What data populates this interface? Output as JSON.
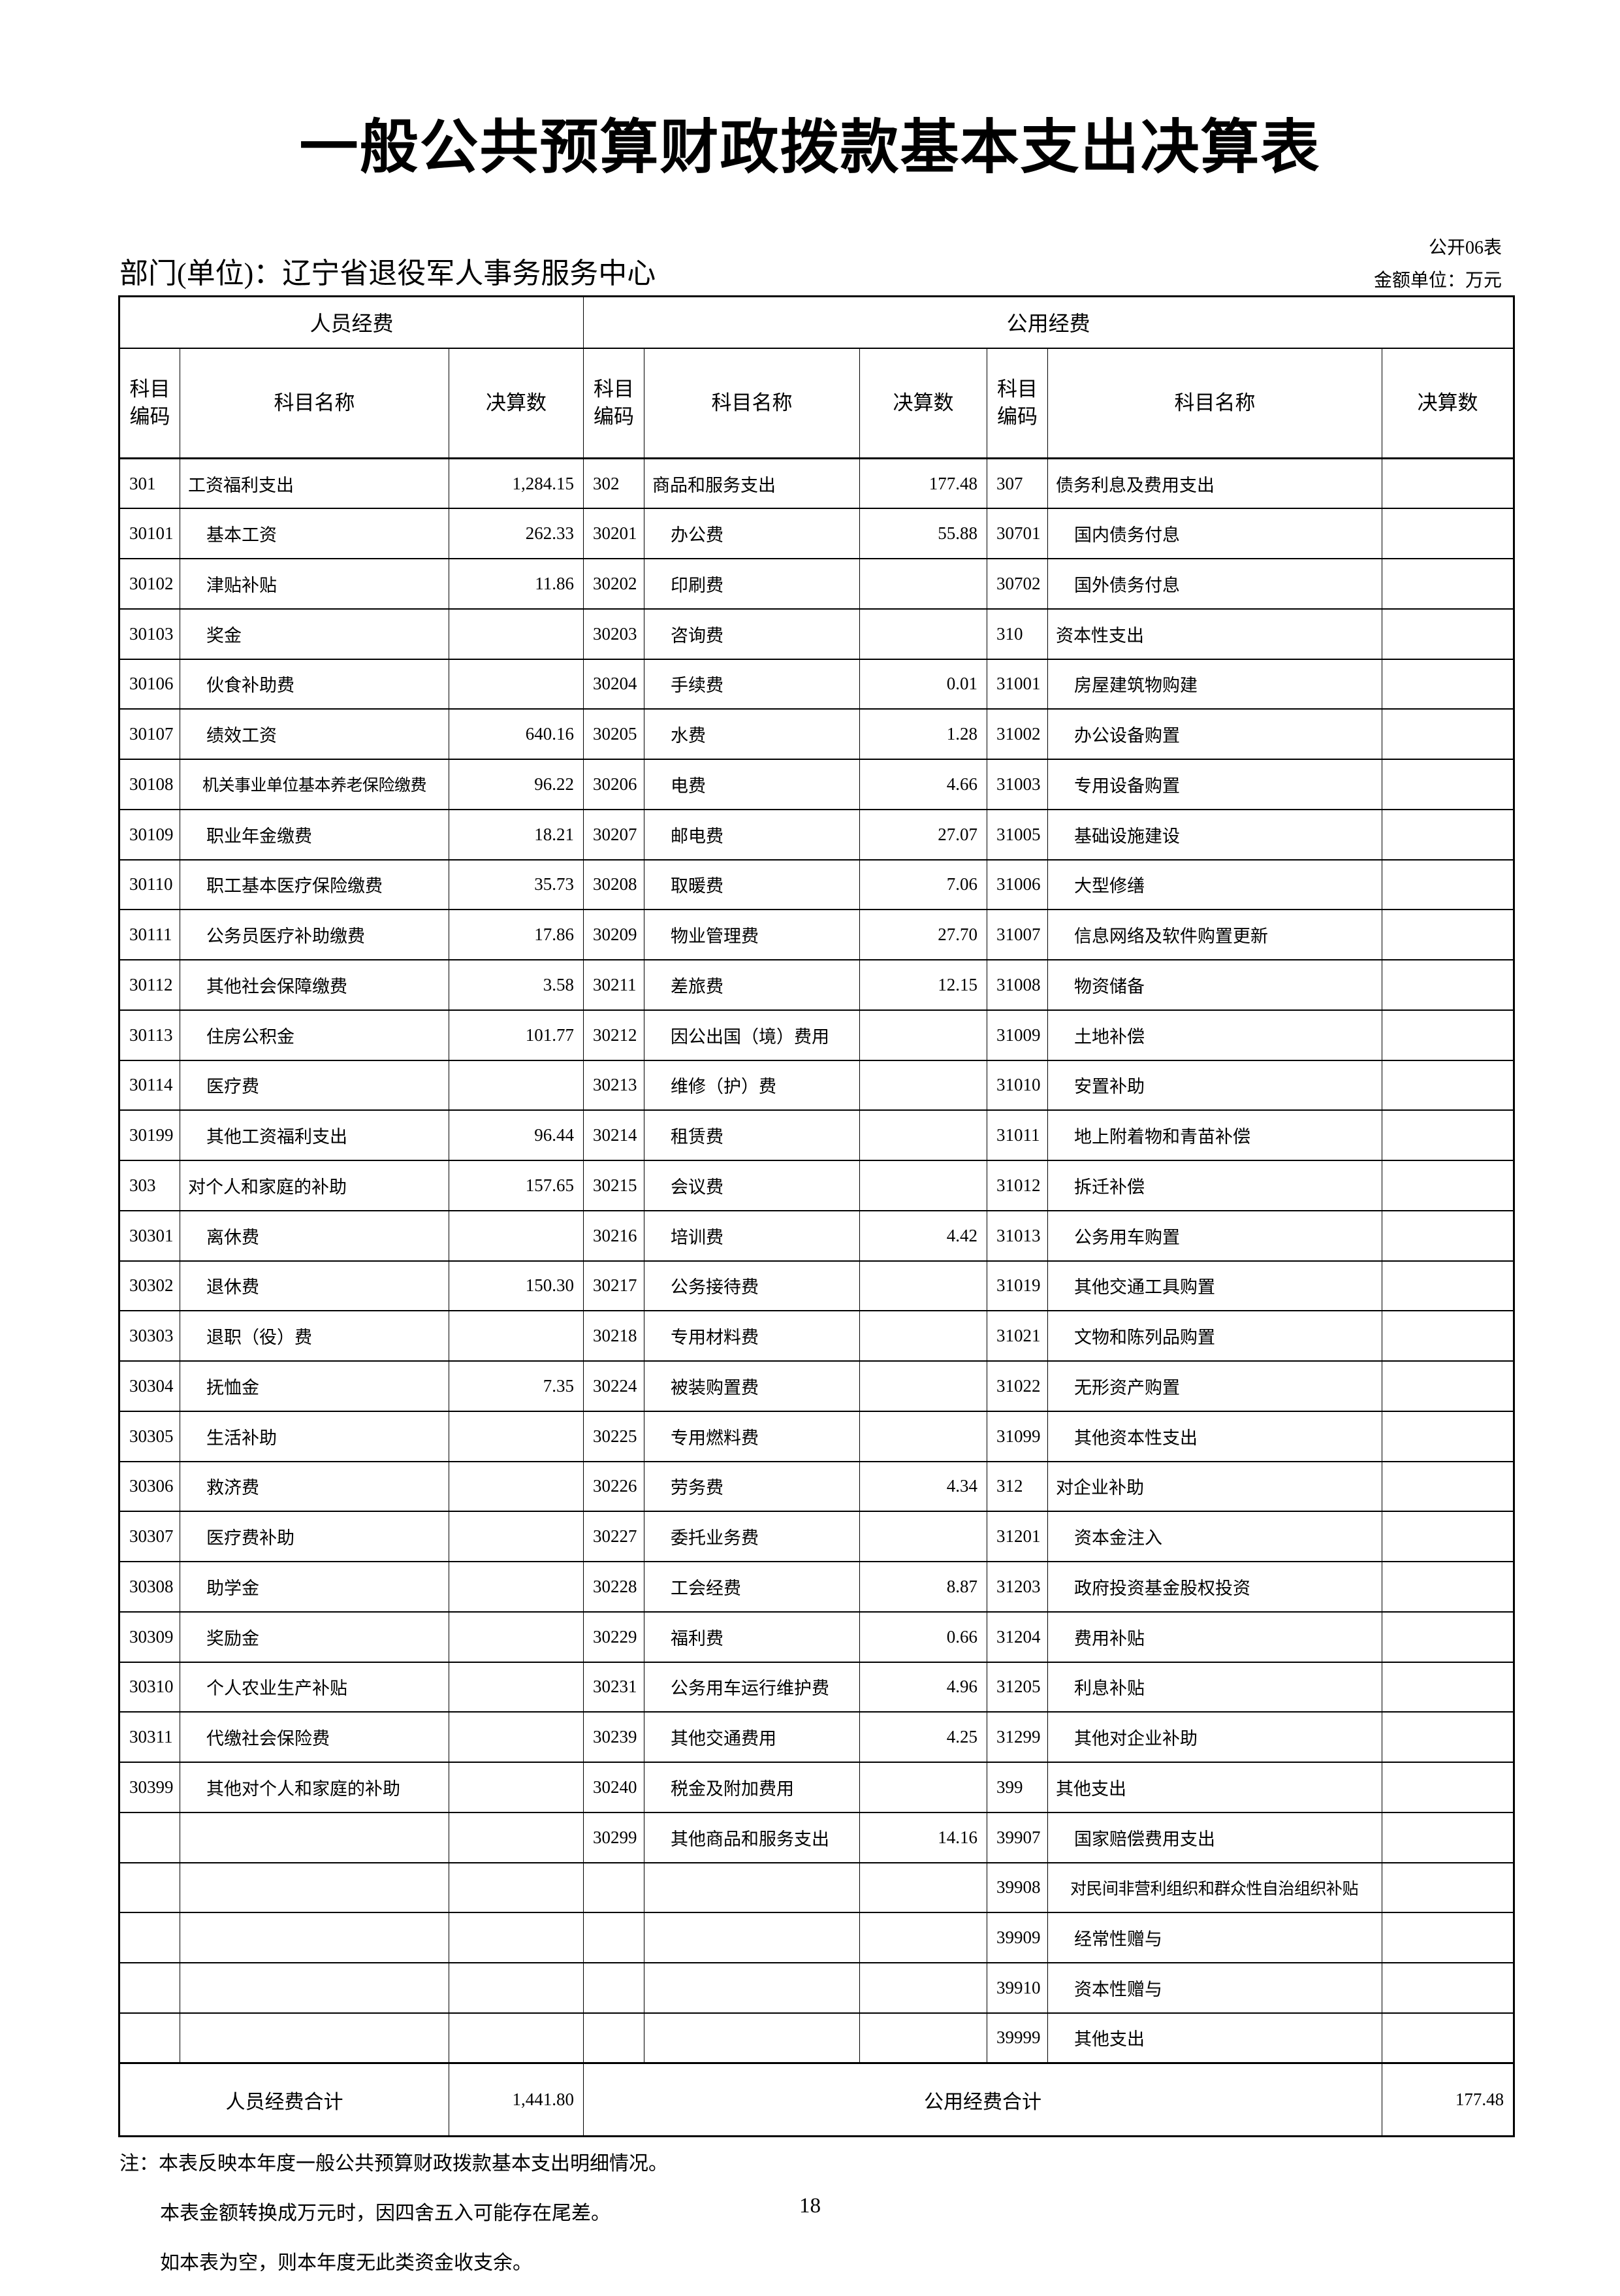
{
  "title": "一般公共预算财政拨款基本支出决算表",
  "header": {
    "department": "部门(单位)：辽宁省退役军人事务服务中心",
    "form_code": "公开06表",
    "unit": "金额单位：万元"
  },
  "table": {
    "group_headers": [
      "人员经费",
      "公用经费"
    ],
    "column_headers": [
      "科目编码",
      "科目名称",
      "决算数"
    ],
    "rows": [
      [
        "301",
        "工资福利支出",
        "1,284.15",
        "302",
        "商品和服务支出",
        "177.48",
        "307",
        "债务利息及费用支出",
        ""
      ],
      [
        "30101",
        "基本工资",
        "262.33",
        "30201",
        "办公费",
        "55.88",
        "30701",
        "国内债务付息",
        ""
      ],
      [
        "30102",
        "津贴补贴",
        "11.86",
        "30202",
        "印刷费",
        "",
        "30702",
        "国外债务付息",
        ""
      ],
      [
        "30103",
        "奖金",
        "",
        "30203",
        "咨询费",
        "",
        "310",
        "资本性支出",
        ""
      ],
      [
        "30106",
        "伙食补助费",
        "",
        "30204",
        "手续费",
        "0.01",
        "31001",
        "房屋建筑物购建",
        ""
      ],
      [
        "30107",
        "绩效工资",
        "640.16",
        "30205",
        "水费",
        "1.28",
        "31002",
        "办公设备购置",
        ""
      ],
      [
        "30108",
        "机关事业单位基本养老保险缴费",
        "96.22",
        "30206",
        "电费",
        "4.66",
        "31003",
        "专用设备购置",
        ""
      ],
      [
        "30109",
        "职业年金缴费",
        "18.21",
        "30207",
        "邮电费",
        "27.07",
        "31005",
        "基础设施建设",
        ""
      ],
      [
        "30110",
        "职工基本医疗保险缴费",
        "35.73",
        "30208",
        "取暖费",
        "7.06",
        "31006",
        "大型修缮",
        ""
      ],
      [
        "30111",
        "公务员医疗补助缴费",
        "17.86",
        "30209",
        "物业管理费",
        "27.70",
        "31007",
        "信息网络及软件购置更新",
        ""
      ],
      [
        "30112",
        "其他社会保障缴费",
        "3.58",
        "30211",
        "差旅费",
        "12.15",
        "31008",
        "物资储备",
        ""
      ],
      [
        "30113",
        "住房公积金",
        "101.77",
        "30212",
        "因公出国（境）费用",
        "",
        "31009",
        "土地补偿",
        ""
      ],
      [
        "30114",
        "医疗费",
        "",
        "30213",
        "维修（护）费",
        "",
        "31010",
        "安置补助",
        ""
      ],
      [
        "30199",
        "其他工资福利支出",
        "96.44",
        "30214",
        "租赁费",
        "",
        "31011",
        "地上附着物和青苗补偿",
        ""
      ],
      [
        "303",
        "对个人和家庭的补助",
        "157.65",
        "30215",
        "会议费",
        "",
        "31012",
        "拆迁补偿",
        ""
      ],
      [
        "30301",
        "离休费",
        "",
        "30216",
        "培训费",
        "4.42",
        "31013",
        "公务用车购置",
        ""
      ],
      [
        "30302",
        "退休费",
        "150.30",
        "30217",
        "公务接待费",
        "",
        "31019",
        "其他交通工具购置",
        ""
      ],
      [
        "30303",
        "退职（役）费",
        "",
        "30218",
        "专用材料费",
        "",
        "31021",
        "文物和陈列品购置",
        ""
      ],
      [
        "30304",
        "抚恤金",
        "7.35",
        "30224",
        "被装购置费",
        "",
        "31022",
        "无形资产购置",
        ""
      ],
      [
        "30305",
        "生活补助",
        "",
        "30225",
        "专用燃料费",
        "",
        "31099",
        "其他资本性支出",
        ""
      ],
      [
        "30306",
        "救济费",
        "",
        "30226",
        "劳务费",
        "4.34",
        "312",
        "对企业补助",
        ""
      ],
      [
        "30307",
        "医疗费补助",
        "",
        "30227",
        "委托业务费",
        "",
        "31201",
        "资本金注入",
        ""
      ],
      [
        "30308",
        "助学金",
        "",
        "30228",
        "工会经费",
        "8.87",
        "31203",
        "政府投资基金股权投资",
        ""
      ],
      [
        "30309",
        "奖励金",
        "",
        "30229",
        "福利费",
        "0.66",
        "31204",
        "费用补贴",
        ""
      ],
      [
        "30310",
        "个人农业生产补贴",
        "",
        "30231",
        "公务用车运行维护费",
        "4.96",
        "31205",
        "利息补贴",
        ""
      ],
      [
        "30311",
        "代缴社会保险费",
        "",
        "30239",
        "其他交通费用",
        "4.25",
        "31299",
        "其他对企业补助",
        ""
      ],
      [
        "30399",
        "其他对个人和家庭的补助",
        "",
        "30240",
        "税金及附加费用",
        "",
        "399",
        "其他支出",
        ""
      ],
      [
        "",
        "",
        "",
        "30299",
        "其他商品和服务支出",
        "14.16",
        "39907",
        "国家赔偿费用支出",
        ""
      ],
      [
        "",
        "",
        "",
        "",
        "",
        "",
        "39908",
        "对民间非营利组织和群众性自治组织补贴",
        ""
      ],
      [
        "",
        "",
        "",
        "",
        "",
        "",
        "39909",
        "经常性赠与",
        ""
      ],
      [
        "",
        "",
        "",
        "",
        "",
        "",
        "39910",
        "资本性赠与",
        ""
      ],
      [
        "",
        "",
        "",
        "",
        "",
        "",
        "39999",
        "其他支出",
        ""
      ]
    ],
    "totals": {
      "personnel_label": "人员经费合计",
      "personnel_value": "1,441.80",
      "public_label": "公用经费合计",
      "public_value": "177.48"
    }
  },
  "notes": [
    "注：本表反映本年度一般公共预算财政拨款基本支出明细情况。",
    "本表金额转换成万元时，因四舍五入可能存在尾差。",
    "如本表为空，则本年度无此类资金收支余。"
  ],
  "page_number": "18"
}
